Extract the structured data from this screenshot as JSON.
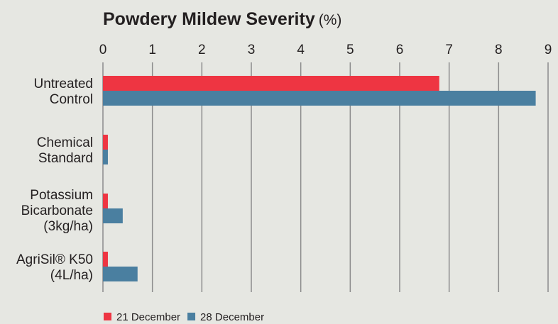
{
  "chart_data": {
    "type": "bar",
    "orientation": "horizontal",
    "title": "Powdery Mildew Severity",
    "title_unit": "(%)",
    "xlim": [
      0,
      9
    ],
    "x_ticks": [
      "0",
      "1",
      "2",
      "3",
      "4",
      "5",
      "6",
      "7",
      "8",
      "9"
    ],
    "grid": true,
    "legend_position": "bottom-left",
    "categories": [
      [
        "Untreated",
        "Control"
      ],
      [
        "Chemical",
        "Standard"
      ],
      [
        "Potassium",
        "Bicarbonate",
        "(3kg/ha)"
      ],
      [
        "AgriSil® K50",
        "(4L/ha)"
      ]
    ],
    "series": [
      {
        "name": "21 December",
        "color": "#ee3542",
        "values": [
          6.8,
          0.1,
          0.1,
          0.1
        ]
      },
      {
        "name": "28 December",
        "color": "#4a7fa0",
        "values": [
          8.75,
          0.1,
          0.4,
          0.7
        ]
      }
    ]
  }
}
